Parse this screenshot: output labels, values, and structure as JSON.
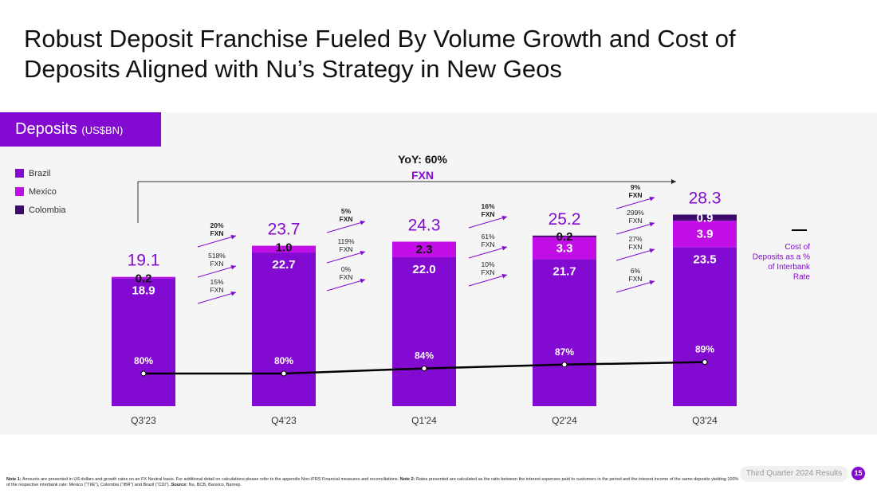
{
  "page": {
    "title_line1": "Robust Deposit Franchise Fueled By Volume Growth and Cost of",
    "title_line2": "Deposits Aligned with Nu’s Strategy in New Geos",
    "tag_main": "Deposits",
    "tag_unit": "(US$BN)",
    "footer_note1_label": "Note 1:",
    "footer_note1": "Amounts are presented in US dollars and growth rates on an FX Neutral basis. For additional detail on calculations please refer to the appendix Non-IFRS Financial measures and reconciliations.",
    "footer_note2_label": "Note 2:",
    "footer_note2": "Rates presented are calculated as the ratio between the interest expenses paid to customers in the period and the interest income of the same deposits yielding 100% of the respective interbank rate: Mexico (“TIIE”), Colombia (“IBR”) and Brazil (“CDI”).",
    "footer_source_label": "Source:",
    "footer_source": "Nu, BCB, Banxico, Banrep.",
    "results_label": "Third Quarter 2024 Results",
    "page_number": "15"
  },
  "colors": {
    "brazil": "#820ad1",
    "mexico": "#c20ee6",
    "colombia": "#3d0a6e",
    "accent": "#820ad1",
    "line": "#000000"
  },
  "chart_data": {
    "type": "stacked-bar",
    "categories": [
      "Q3'23",
      "Q4'23",
      "Q1'24",
      "Q2'24",
      "Q3'24"
    ],
    "series": [
      {
        "name": "Brazil",
        "values": [
          18.9,
          22.7,
          22.0,
          21.7,
          23.5
        ],
        "labels": [
          "18.9",
          "22.7",
          "22.0",
          "21.7",
          "23.5"
        ]
      },
      {
        "name": "Mexico",
        "values": [
          0.2,
          1.0,
          2.3,
          3.3,
          3.9
        ],
        "labels": [
          "0.2",
          "1.0",
          "2.3",
          "3.3",
          "3.9"
        ]
      },
      {
        "name": "Colombia",
        "values": [
          0.0,
          0.0,
          0.0,
          0.2,
          0.9
        ],
        "labels": [
          "",
          "",
          "",
          "0.2",
          "0.9"
        ]
      }
    ],
    "totals": [
      "19.1",
      "23.7",
      "24.3",
      "25.2",
      "28.3"
    ],
    "ylim": [
      0,
      30
    ],
    "line_series": {
      "name": "Cost of Deposits as a % of Interbank Rate",
      "values": [
        80,
        80,
        84,
        87,
        89
      ],
      "labels": [
        "80%",
        "80%",
        "84%",
        "87%",
        "89%"
      ]
    },
    "line_legend_lines": [
      "Cost of",
      "Deposits as a %",
      "of Interbank",
      "Rate"
    ],
    "yoy_label": "YoY: 60%",
    "yoy_sub": "FXN",
    "growth": [
      {
        "total": [
          "20%",
          "FXN"
        ],
        "mexico": [
          "518%",
          "FXN"
        ],
        "brazil": [
          "15%",
          "FXN"
        ]
      },
      {
        "total": [
          "5%",
          "FXN"
        ],
        "mexico": [
          "119%",
          "FXN"
        ],
        "brazil": [
          "0%",
          "FXN"
        ]
      },
      {
        "total": [
          "16%",
          "FXN"
        ],
        "mexico": [
          "61%",
          "FXN"
        ],
        "brazil": [
          "10%",
          "FXN"
        ]
      },
      {
        "total": [
          "9%",
          "FXN"
        ],
        "mexico": [
          "299%",
          "FXN"
        ],
        "colombia": [
          "27%",
          "FXN"
        ],
        "brazil": [
          "6%",
          "FXN"
        ]
      }
    ],
    "legend": [
      "Brazil",
      "Mexico",
      "Colombia"
    ]
  }
}
